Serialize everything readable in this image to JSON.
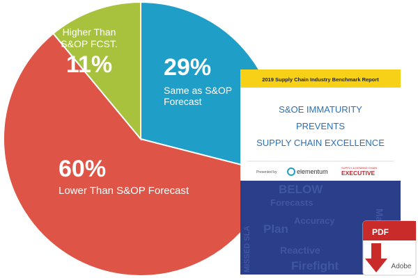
{
  "chart_data": {
    "type": "pie",
    "categories": [
      "Same as S&OP Forecast",
      "Lower Than S&OP Forecast",
      "Higher Than S&OP FCST."
    ],
    "values": [
      29,
      60,
      11
    ],
    "value_labels": [
      "29%",
      "60%",
      "11%"
    ],
    "colors": [
      "#1f9fc7",
      "#de5446",
      "#a8c23e"
    ]
  },
  "cover": {
    "banner": "2019 Supply Chain Industry Benchmark Report",
    "title_lines": [
      "S&OE IMMATURITY",
      "PREVENTS",
      "SUPPLY CHAIN EXCELLENCE"
    ],
    "presented_by": "Presented by",
    "sponsor": "elementum",
    "publisher_small": "SUPPLY & DEMAND CHAIN",
    "publisher": "EXECUTIVE",
    "background_words": [
      "BELOW",
      "Forecasts",
      "Plan",
      "Accuracy",
      "Manual",
      "Reactive",
      "Firefight",
      "MISSED SLA"
    ]
  },
  "pdf_icon": {
    "label": "PDF",
    "brand": "Adobe"
  }
}
